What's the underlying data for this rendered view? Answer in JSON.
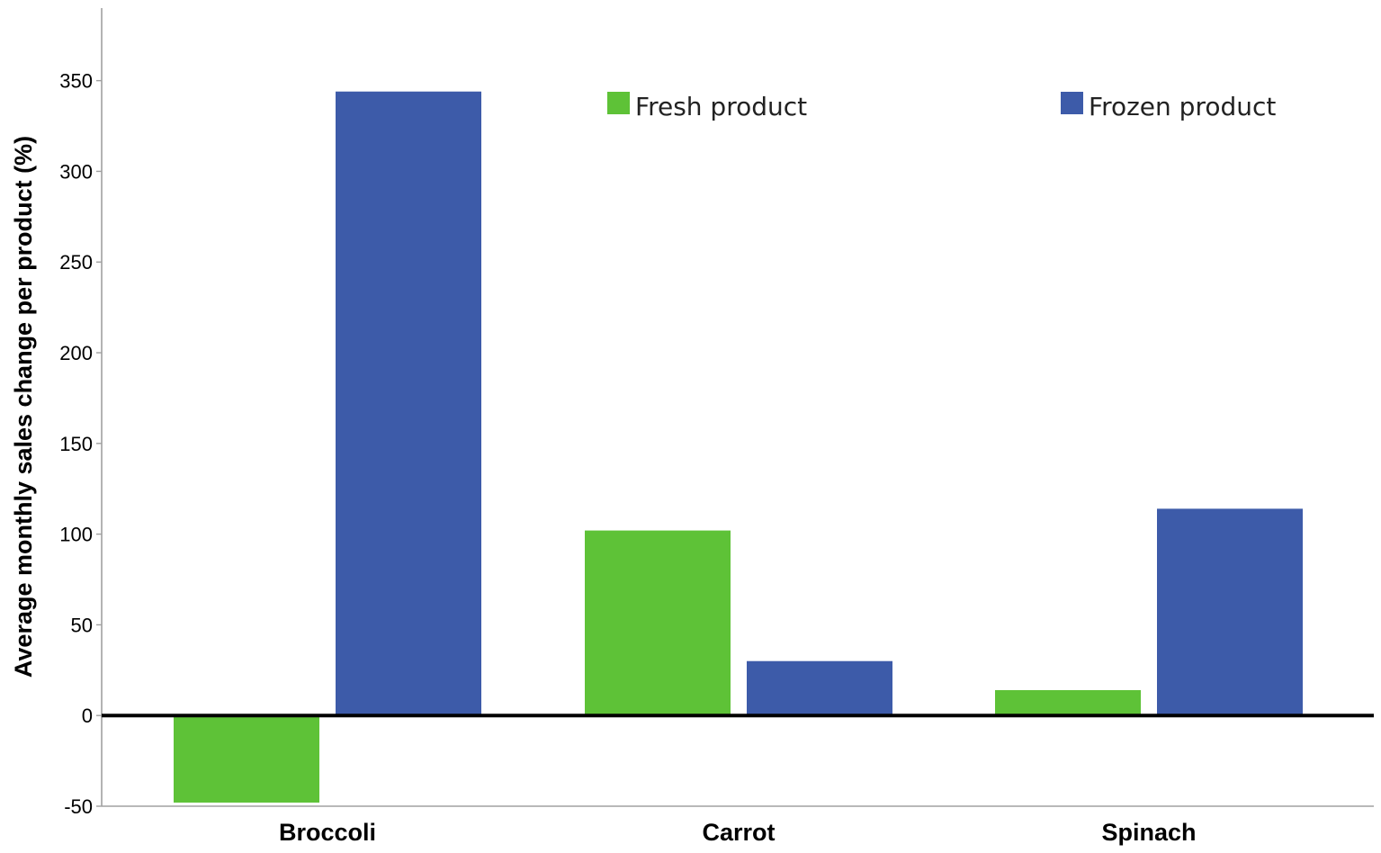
{
  "chart_data": {
    "type": "bar",
    "title": "",
    "xlabel": "",
    "ylabel": "Average monthly sales change per product (%)",
    "categories": [
      "Broccoli",
      "Carrot",
      "Spinach"
    ],
    "series": [
      {
        "name": "Fresh product",
        "color": "#5ec237",
        "values": [
          -48,
          102,
          14
        ]
      },
      {
        "name": "Frozen product",
        "color": "#3d5ba9",
        "values": [
          344,
          30,
          114
        ]
      }
    ],
    "ylim": [
      -50,
      390
    ],
    "yticks": [
      -50,
      0,
      50,
      100,
      150,
      200,
      250,
      300,
      350
    ],
    "zero_line": true,
    "grid": false,
    "legend": {
      "placement": "top",
      "orientation": "horizontal"
    }
  }
}
